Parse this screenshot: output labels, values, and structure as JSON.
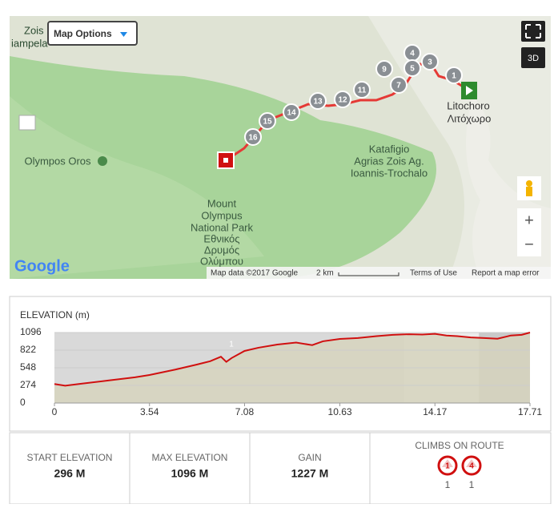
{
  "map": {
    "options_button": "Map Options",
    "view_3d": "3D",
    "zoom_in": "+",
    "zoom_out": "−",
    "google": "Google",
    "attribution": "Map data ©2017 Google",
    "scale": "2 km",
    "terms": "Terms of Use",
    "report": "Report a map error",
    "place_labels": {
      "zois": "Zois",
      "zois_cut": "iampela",
      "olympos": "Olympos Oros",
      "litochoro": "Litochoro",
      "litochoro_gr": "Λιτόχωρο",
      "katafigio": [
        "Katafigio",
        "Agrias Zois Ag.",
        "Ioannis-Trochalo"
      ],
      "park": [
        "Mount",
        "Olympus",
        "National Park",
        "Εθνικός",
        "Δρυμός",
        "Ολύμπου"
      ]
    },
    "markers": [
      "1",
      "3",
      "4",
      "5",
      "7",
      "9",
      "11",
      "12",
      "13",
      "14",
      "15",
      "16"
    ]
  },
  "chart_data": {
    "type": "area",
    "title": "ELEVATION (m)",
    "annotation": "1",
    "color": "#d01010",
    "x": [
      0,
      0.4,
      1,
      2,
      3,
      3.54,
      4.5,
      5.3,
      5.8,
      6.2,
      6.4,
      6.6,
      7.08,
      7.6,
      8.3,
      9,
      9.6,
      10,
      10.63,
      11.3,
      12,
      12.6,
      13.2,
      13.7,
      14.17,
      14.6,
      15,
      15.5,
      16,
      16.5,
      17,
      17.4,
      17.71
    ],
    "values": [
      296,
      270,
      300,
      350,
      400,
      436,
      520,
      598,
      650,
      720,
      640,
      700,
      810,
      860,
      909,
      940,
      900,
      960,
      996,
      1010,
      1040,
      1060,
      1070,
      1065,
      1075,
      1050,
      1040,
      1020,
      1010,
      1000,
      1050,
      1060,
      1096
    ],
    "xlim": [
      0,
      17.71
    ],
    "ylim": [
      0,
      1096
    ],
    "xticks": [
      0,
      3.54,
      7.08,
      10.63,
      14.17,
      17.71
    ],
    "yticks": [
      0,
      274,
      548,
      822,
      1096
    ]
  },
  "stats": [
    {
      "label": "START ELEVATION",
      "value": "296 M"
    },
    {
      "label": "MAX ELEVATION",
      "value": "1096 M"
    },
    {
      "label": "GAIN",
      "value": "1227 M"
    }
  ],
  "climbs": {
    "label": "CLIMBS ON ROUTE",
    "items": [
      {
        "badge": "1",
        "count": "1"
      },
      {
        "badge": "4",
        "count": "1"
      }
    ]
  }
}
